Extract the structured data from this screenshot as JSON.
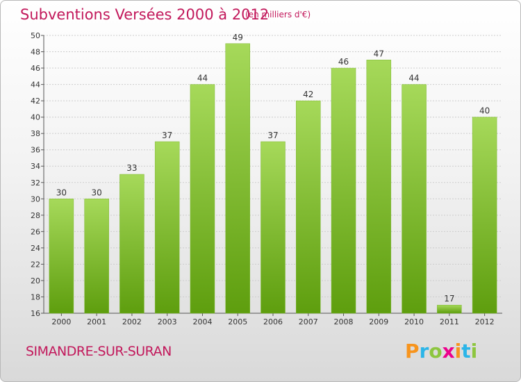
{
  "header": {
    "title": "Subventions Versées 2000 à 2012",
    "subtitle": "(en milliers d'€)"
  },
  "footer": {
    "commune": "SIMANDRE-SUR-SURAN",
    "logo_letters": [
      "P",
      "r",
      "o",
      "x",
      "i",
      "t",
      "i"
    ],
    "logo_colors": [
      "#f7941d",
      "#2bb5e8",
      "#8dc63f",
      "#ec008c",
      "#f7941d",
      "#2bb5e8",
      "#8dc63f"
    ]
  },
  "colors": {
    "bar_top": "#a6d95a",
    "bar_bottom": "#5e9e0e",
    "title": "#c2185b",
    "grid": "#cccccc"
  },
  "chart_data": {
    "type": "bar",
    "title": "Subventions Versées 2000 à 2012",
    "subtitle": "(en milliers d'€)",
    "categories": [
      "2000",
      "2001",
      "2002",
      "2003",
      "2004",
      "2005",
      "2006",
      "2007",
      "2008",
      "2009",
      "2010",
      "2011",
      "2012"
    ],
    "values": [
      30,
      30,
      33,
      37,
      44,
      49,
      37,
      42,
      46,
      47,
      44,
      17,
      40
    ],
    "ylim": [
      16,
      50
    ],
    "yticks": [
      16,
      18,
      20,
      22,
      24,
      26,
      28,
      30,
      32,
      34,
      36,
      38,
      40,
      42,
      44,
      46,
      48,
      50
    ],
    "grid": true,
    "data_labels": true
  }
}
